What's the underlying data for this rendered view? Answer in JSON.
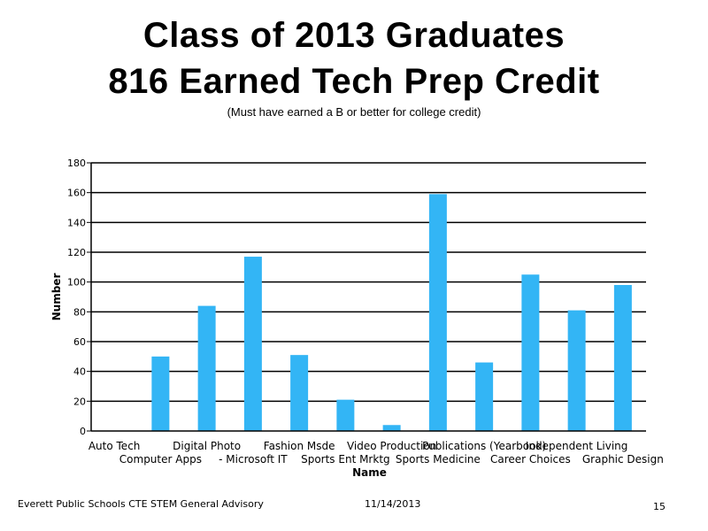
{
  "slide": {
    "title_line1": "Class of 2013 Graduates",
    "title_line2": "816 Earned Tech Prep Credit",
    "subtitle": "(Must have earned a B or better for college credit)",
    "footer_left": "Everett Public Schools CTE STEM General Advisory",
    "footer_date": "11/14/2013",
    "page_number": "15"
  },
  "chart_data": {
    "type": "bar",
    "title": "",
    "xlabel": "Name",
    "ylabel": "Number",
    "ylim": [
      0,
      180
    ],
    "yticks": [
      0,
      20,
      40,
      60,
      80,
      100,
      120,
      140,
      160,
      180
    ],
    "grid": true,
    "bar_color": "#33b5f5",
    "categories": [
      "Auto Tech",
      "Computer Apps",
      "Digital Photo",
      "- Microsoft IT",
      "Fashion Msde",
      "Sports Ent Mrktg",
      "Video Production",
      "Sports Medicine",
      "Publications (Yearbook)",
      "Career Choices",
      "Independent Living",
      "Graphic Design"
    ],
    "values": [
      0,
      50,
      84,
      117,
      51,
      21,
      4,
      159,
      46,
      105,
      81,
      98
    ]
  }
}
